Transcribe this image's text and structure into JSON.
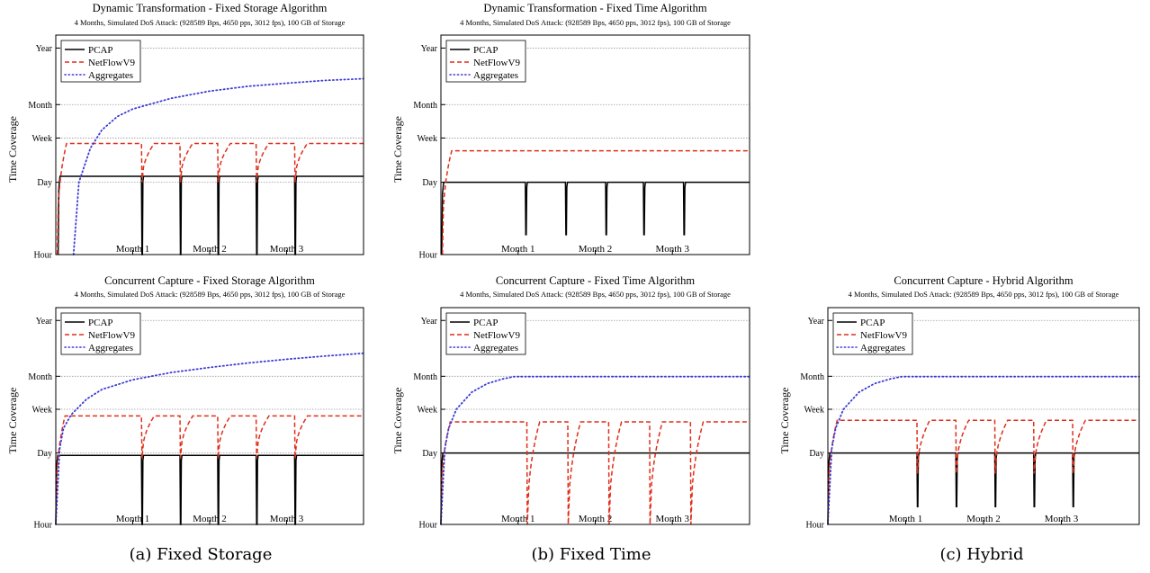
{
  "chart_data": [
    {
      "id": "a_top",
      "type": "line",
      "title": "Dynamic Transformation - Fixed Storage Algorithm",
      "subtitle": "4 Months, Simulated DoS Attack: (928589 Bps, 4650 pps, 3012 fps),  100 GB of Storage",
      "ylabel": "Time Coverage",
      "xlabel": "",
      "x_ticks": [
        "Month 1",
        "Month 2",
        "Month 3"
      ],
      "x_range_months": [
        0,
        4
      ],
      "y_ticks": [
        "Hour",
        "Day",
        "Week",
        "Month",
        "Year"
      ],
      "y_scale": "log",
      "grid": true,
      "legend_position": "top-left",
      "series": [
        {
          "name": "PCAP",
          "color": "#000000",
          "style": "solid",
          "plateau_days": 1.3,
          "start_month": 0.03,
          "reset_months": [
            1.12,
            1.62,
            2.11,
            2.61,
            3.11
          ],
          "reset_min_hours": 0.8
        },
        {
          "name": "NetFlowV9",
          "color": "#e02e1a",
          "style": "dashed",
          "plateau_days": 5.5,
          "start_month": 0.02,
          "reset_months": [
            1.12,
            1.62,
            2.11,
            2.61,
            3.11
          ],
          "reset_min_days": 1.0
        },
        {
          "name": "Aggregates",
          "color": "#3b3bd6",
          "style": "dotted",
          "start_month": 0.23,
          "values_days": [
            [
              0.3,
              1.0
            ],
            [
              0.45,
              4.5
            ],
            [
              0.6,
              10
            ],
            [
              0.8,
              18
            ],
            [
              1.0,
              25
            ],
            [
              1.5,
              40
            ],
            [
              2.0,
              55
            ],
            [
              2.5,
              68
            ],
            [
              3.0,
              78
            ],
            [
              3.5,
              88
            ],
            [
              4.0,
              95
            ]
          ]
        }
      ]
    },
    {
      "id": "b_top",
      "type": "line",
      "title": "Dynamic Transformation - Fixed Time Algorithm",
      "subtitle": "4 Months, Simulated DoS Attack: (928589 Bps, 4650 pps, 3012 fps),  100 GB of Storage",
      "ylabel": "Time Coverage",
      "xlabel": "",
      "x_ticks": [
        "Month 1",
        "Month 2",
        "Month 3"
      ],
      "x_range_months": [
        0,
        4
      ],
      "y_ticks": [
        "Hour",
        "Day",
        "Week",
        "Month",
        "Year"
      ],
      "y_scale": "log",
      "grid": true,
      "legend_position": "top-left",
      "series": [
        {
          "name": "PCAP",
          "color": "#000000",
          "style": "solid",
          "plateau_days": 1.0,
          "start_month": 0.01,
          "reset_months": [
            1.1,
            1.62,
            2.14,
            2.63,
            3.15
          ],
          "reset_min_hours": 2.4
        },
        {
          "name": "NetFlowV9",
          "color": "#e02e1a",
          "style": "dashed",
          "plateau_days": 4.0,
          "start_month": 0.02,
          "reset_months": [],
          "reset_min_days": 1.0
        },
        {
          "name": "Aggregates",
          "color": "#3b3bd6",
          "style": "dotted",
          "start_month": null,
          "values_days": []
        }
      ]
    },
    {
      "id": "a_bottom",
      "type": "line",
      "title": "Concurrent Capture - Fixed Storage Algorithm",
      "subtitle": "4 Months, Simulated DoS Attack: (928589 Bps, 4650 pps, 3012 fps),  100 GB of Storage",
      "ylabel": "Time Coverage",
      "xlabel": "",
      "x_ticks": [
        "Month 1",
        "Month 2",
        "Month 3"
      ],
      "x_range_months": [
        0,
        4
      ],
      "y_ticks": [
        "Hour",
        "Day",
        "Week",
        "Month",
        "Year"
      ],
      "y_scale": "log",
      "grid": true,
      "legend_position": "top-left",
      "series": [
        {
          "name": "PCAP",
          "color": "#000000",
          "style": "solid",
          "plateau_days": 0.9,
          "start_month": 0.0,
          "reset_months": [
            1.12,
            1.62,
            2.11,
            2.61,
            3.11
          ],
          "reset_min_hours": 0.8
        },
        {
          "name": "NetFlowV9",
          "color": "#e02e1a",
          "style": "dashed",
          "plateau_days": 5.2,
          "start_month": 0.0,
          "reset_months": [
            1.12,
            1.62,
            2.11,
            2.61,
            3.11
          ],
          "reset_min_days": 0.8
        },
        {
          "name": "Aggregates",
          "color": "#3b3bd6",
          "style": "dotted",
          "start_month": 0.0,
          "values_days": [
            [
              0.05,
              1.2
            ],
            [
              0.1,
              3.0
            ],
            [
              0.2,
              5.5
            ],
            [
              0.4,
              11
            ],
            [
              0.6,
              17
            ],
            [
              0.8,
              21
            ],
            [
              1.0,
              26
            ],
            [
              1.5,
              36
            ],
            [
              2.0,
              45
            ],
            [
              2.5,
              55
            ],
            [
              3.0,
              65
            ],
            [
              3.5,
              75
            ],
            [
              4.0,
              85
            ]
          ]
        }
      ]
    },
    {
      "id": "b_bottom",
      "type": "line",
      "title": "Concurrent Capture - Fixed Time Algorithm",
      "subtitle": "4 Months, Simulated DoS Attack: (928589 Bps, 4650 pps, 3012 fps),  100 GB of Storage",
      "ylabel": "Time Coverage",
      "xlabel": "",
      "x_ticks": [
        "Month 1",
        "Month 2",
        "Month 3"
      ],
      "x_range_months": [
        0,
        4
      ],
      "y_ticks": [
        "Hour",
        "Day",
        "Week",
        "Month",
        "Year"
      ],
      "y_scale": "log",
      "grid": true,
      "legend_position": "top-left",
      "series": [
        {
          "name": "PCAP",
          "color": "#000000",
          "style": "solid",
          "plateau_days": 1.0,
          "start_month": 0.0,
          "reset_months": [],
          "reset_min_hours": 1.0
        },
        {
          "name": "NetFlowV9",
          "color": "#e02e1a",
          "style": "dashed",
          "plateau_days": 4.0,
          "start_month": 0.0,
          "reset_months": [
            1.12,
            1.65,
            2.18,
            2.71,
            3.24
          ],
          "reset_min_days": 0.042
        },
        {
          "name": "Aggregates",
          "color": "#3b3bd6",
          "style": "dotted",
          "start_month": 0.0,
          "values_days": [
            [
              0.05,
              1.2
            ],
            [
              0.1,
              3.0
            ],
            [
              0.2,
              7
            ],
            [
              0.4,
              15
            ],
            [
              0.6,
              22
            ],
            [
              0.8,
              27
            ],
            [
              0.95,
              30
            ],
            [
              4.0,
              30
            ]
          ]
        }
      ]
    },
    {
      "id": "c_bottom",
      "type": "line",
      "title": "Concurrent Capture - Hybrid Algorithm",
      "subtitle": "4 Months, Simulated DoS Attack: (928589 Bps, 4650 pps, 3012 fps),  100 GB of Storage",
      "ylabel": "Time Coverage",
      "xlabel": "",
      "x_ticks": [
        "Month 1",
        "Month 2",
        "Month 3"
      ],
      "x_range_months": [
        0,
        4
      ],
      "y_ticks": [
        "Hour",
        "Day",
        "Week",
        "Month",
        "Year"
      ],
      "y_scale": "log",
      "grid": true,
      "legend_position": "top-left",
      "series": [
        {
          "name": "PCAP",
          "color": "#000000",
          "style": "solid",
          "plateau_days": 1.0,
          "start_month": 0.0,
          "reset_months": [
            1.15,
            1.65,
            2.15,
            2.65,
            3.15
          ],
          "reset_min_hours": 2.2
        },
        {
          "name": "NetFlowV9",
          "color": "#e02e1a",
          "style": "dashed",
          "plateau_days": 4.3,
          "start_month": 0.0,
          "reset_months": [
            1.15,
            1.65,
            2.15,
            2.65,
            3.15
          ],
          "reset_min_days": 0.4
        },
        {
          "name": "Aggregates",
          "color": "#3b3bd6",
          "style": "dotted",
          "start_month": 0.0,
          "values_days": [
            [
              0.05,
              1.2
            ],
            [
              0.1,
              3.0
            ],
            [
              0.2,
              7
            ],
            [
              0.4,
              15
            ],
            [
              0.6,
              22
            ],
            [
              0.8,
              27
            ],
            [
              0.95,
              30
            ],
            [
              4.0,
              30
            ]
          ]
        }
      ]
    }
  ],
  "captions": {
    "a": "(a) Fixed Storage",
    "b": "(b) Fixed Time",
    "c": "(c) Hybrid"
  }
}
